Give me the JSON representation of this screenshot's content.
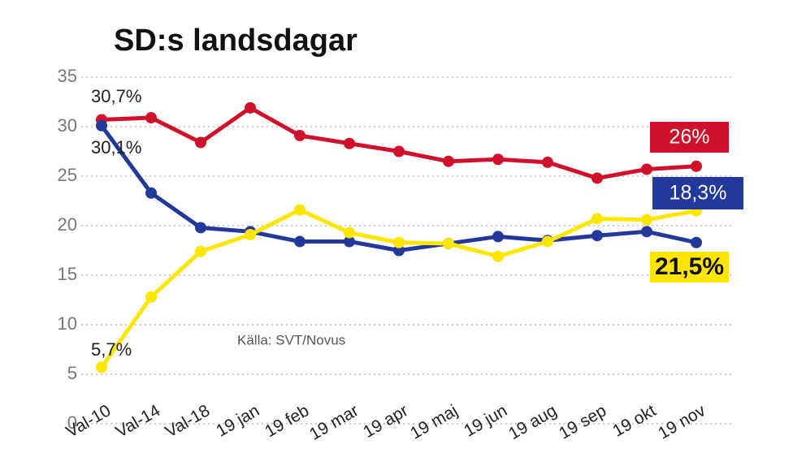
{
  "chart_data": {
    "type": "line",
    "title": "SD:s landsdagar",
    "source": "Källa: SVT/Novus",
    "categories": [
      "Val-10",
      "Val-14",
      "Val-18",
      "19 jan",
      "19 feb",
      "19 mar",
      "19 apr",
      "19 maj",
      "19 jun",
      "19 aug",
      "19 sep",
      "19 okt",
      "19 nov"
    ],
    "ylim": [
      0,
      35
    ],
    "yticks": [
      0,
      5,
      10,
      15,
      20,
      25,
      30,
      35
    ],
    "grid": true,
    "series": [
      {
        "color": "#d0112b",
        "values": [
          30.7,
          30.9,
          28.4,
          31.9,
          29.1,
          28.3,
          27.5,
          26.5,
          26.7,
          26.4,
          24.8,
          25.7,
          26
        ],
        "value_labels": [
          "30,7%",
          null,
          null,
          null,
          null,
          null,
          null,
          null,
          null,
          null,
          null,
          null,
          "26%"
        ]
      },
      {
        "color": "#22389a",
        "values": [
          30.1,
          23.3,
          19.8,
          19.4,
          18.4,
          18.4,
          17.5,
          18.2,
          18.9,
          18.5,
          19.0,
          19.4,
          18.3
        ],
        "value_labels": [
          "30,1%",
          null,
          null,
          null,
          null,
          null,
          null,
          null,
          null,
          null,
          null,
          null,
          "18,3%"
        ]
      },
      {
        "color": "#ffe600",
        "values": [
          5.7,
          12.8,
          17.4,
          19.1,
          21.6,
          19.3,
          18.3,
          18.2,
          16.9,
          18.4,
          20.7,
          20.6,
          21.5
        ],
        "value_labels": [
          "5,7%",
          null,
          null,
          null,
          null,
          null,
          null,
          null,
          null,
          null,
          null,
          null,
          "21,5%"
        ]
      }
    ]
  }
}
